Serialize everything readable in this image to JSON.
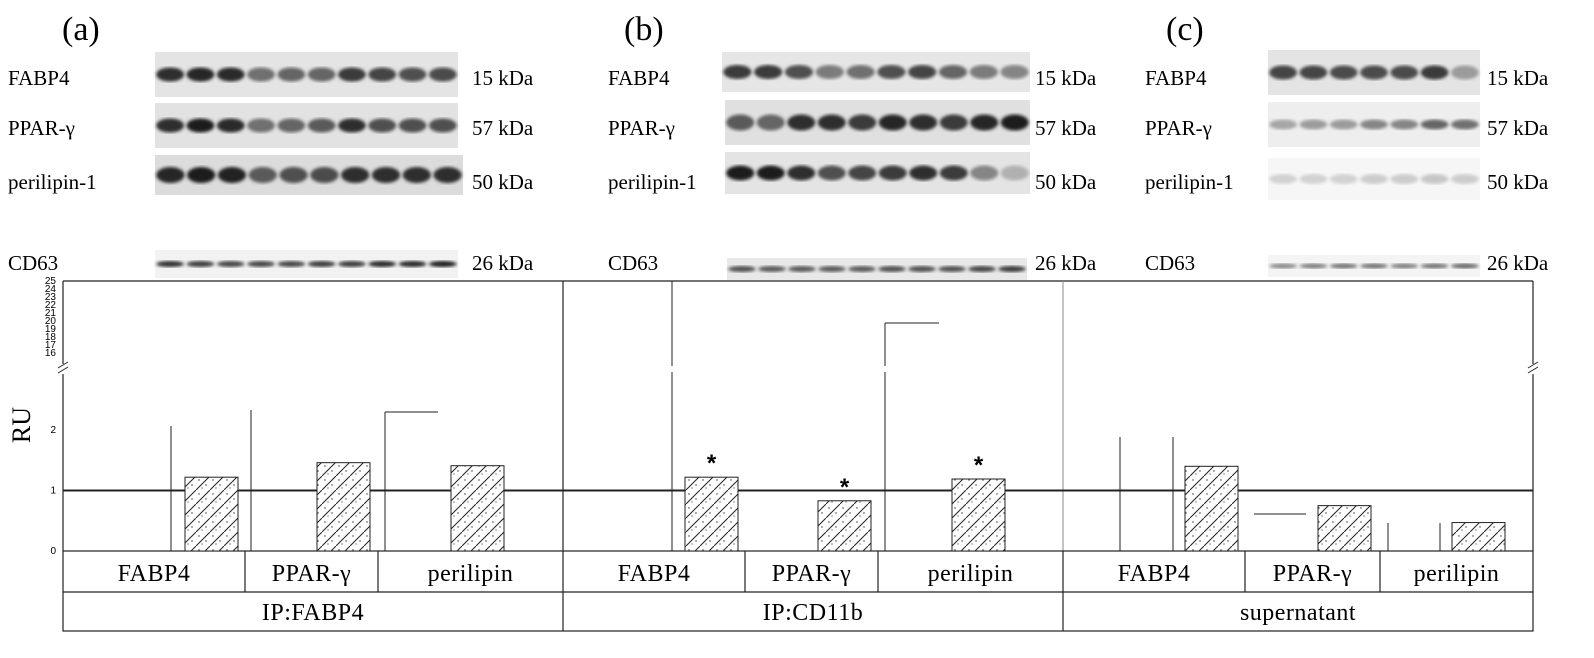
{
  "panels": [
    {
      "letter": "(a)",
      "labels": [
        "FABP4",
        "PPAR-γ",
        "perilipin-1",
        "CD63"
      ],
      "kda": [
        "15 kDa",
        "57 kDa",
        "50 kDa",
        "26 kDa"
      ]
    },
    {
      "letter": "(b)",
      "labels": [
        "FABP4",
        "PPAR-γ",
        "perilipin-1",
        "CD63"
      ],
      "kda": [
        "15 kDa",
        "57 kDa",
        "50 kDa",
        "26 kDa"
      ]
    },
    {
      "letter": "(c)",
      "labels": [
        "FABP4",
        "PPAR-γ",
        "perilipin-1",
        "CD63"
      ],
      "kda": [
        "15 kDa",
        "57 kDa",
        "50 kDa",
        "26 kDa"
      ]
    }
  ],
  "chart_data": {
    "type": "bar",
    "ylabel": "RU",
    "yticks_lower": [
      "0",
      "1",
      "2"
    ],
    "yticks_upper": [
      "16",
      "17",
      "18",
      "19",
      "20",
      "21",
      "22",
      "23",
      "24",
      "25"
    ],
    "y_axis_break": true,
    "reference_line": 1,
    "groups": [
      {
        "name": "IP:FABP4",
        "categories": [
          "FABP4",
          "PPAR-γ",
          "perilipin"
        ],
        "values": [
          1.22,
          1.46,
          1.41
        ],
        "significant": [
          false,
          false,
          false
        ]
      },
      {
        "name": "IP:CD11b",
        "categories": [
          "FABP4",
          "PPAR-γ",
          "perilipin"
        ],
        "values": [
          1.22,
          0.83,
          1.19
        ],
        "significant": [
          true,
          true,
          true
        ]
      },
      {
        "name": "supernatant",
        "categories": [
          "FABP4",
          "PPAR-γ",
          "perilipin"
        ],
        "values": [
          1.4,
          0.75,
          0.47
        ],
        "significant": [
          false,
          false,
          false
        ]
      }
    ],
    "significance_marker": "*",
    "grid": false
  }
}
